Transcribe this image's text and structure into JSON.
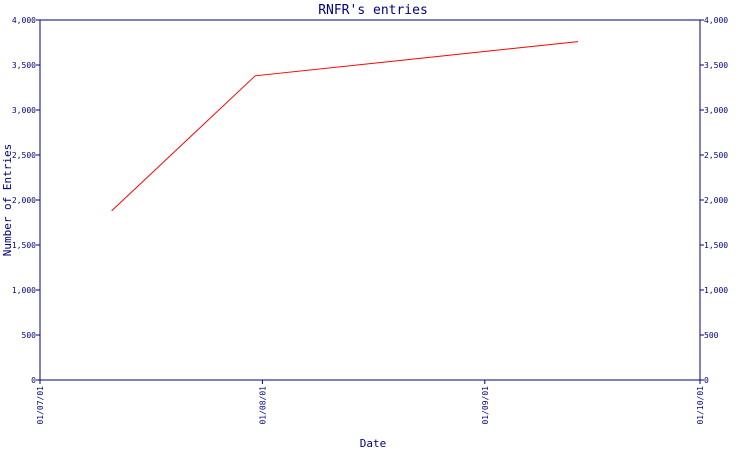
{
  "chart_data": {
    "type": "line",
    "title": "RNFR's entries",
    "xlabel": "Date",
    "ylabel": "Number of Entries",
    "ylim": [
      0,
      4000
    ],
    "y_ticks": [
      0,
      500,
      1000,
      1500,
      2000,
      2500,
      3000,
      3500,
      4000
    ],
    "y_tick_labels": [
      "0",
      "500",
      "1,000",
      "1,500",
      "2,000",
      "2,500",
      "3,000",
      "3,500",
      "4,000"
    ],
    "x_ticks": [
      "2001-07-01",
      "2001-08-01",
      "2001-09-01",
      "2001-10-01"
    ],
    "x_tick_labels": [
      "01/07/01",
      "01/08/01",
      "01/09/01",
      "01/10/01"
    ],
    "xlim": [
      "2001-07-01",
      "2001-10-01"
    ],
    "grid": false,
    "right_axis": true,
    "series": [
      {
        "color": "#ff0000",
        "points": [
          {
            "x": "2001-07-11",
            "y": 1880
          },
          {
            "x": "2001-07-31",
            "y": 3380
          },
          {
            "x": "2001-09-14",
            "y": 3760
          }
        ]
      }
    ],
    "colors": {
      "axis": "#000080",
      "line": "#ff0000",
      "background": "#ffffff"
    }
  }
}
